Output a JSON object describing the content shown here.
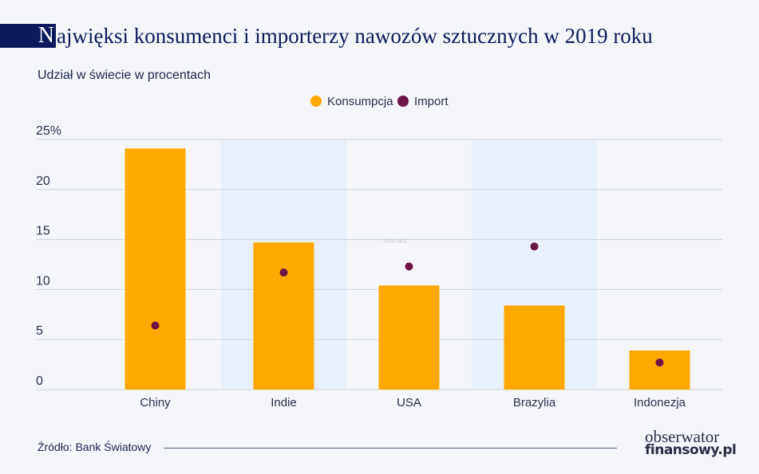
{
  "title": {
    "initial": "N",
    "rest": "ajwięksi konsumenci i importerzy nawozów sztucznych w 2019 roku"
  },
  "subtitle": "Udział w świecie w procentach",
  "source": "Źródło: Bank Światowy",
  "logo": {
    "line1": "obserwator",
    "line2": "finansowy.pl"
  },
  "watermark": "Interact",
  "chart_data": {
    "type": "bar",
    "categories": [
      "Chiny",
      "Indie",
      "USA",
      "Brazylia",
      "Indonezja"
    ],
    "series": [
      {
        "name": "Konsumpcja",
        "type": "bar",
        "color": "#ffa800",
        "values": [
          24.1,
          14.7,
          10.4,
          8.4,
          3.9
        ]
      },
      {
        "name": "Import",
        "type": "scatter",
        "color": "#6e1446",
        "values": [
          6.4,
          11.7,
          12.3,
          14.3,
          2.7
        ]
      }
    ],
    "ylim": [
      0,
      25
    ],
    "yticks": [
      "0",
      "5",
      "10",
      "15",
      "20",
      "25%"
    ],
    "ytick_values": [
      0,
      5,
      10,
      15,
      20,
      25
    ],
    "grid": true,
    "legend": "top-center",
    "shaded_bands": [
      "Indie",
      "Brazylia"
    ],
    "band_color": "#e8f0f9"
  }
}
